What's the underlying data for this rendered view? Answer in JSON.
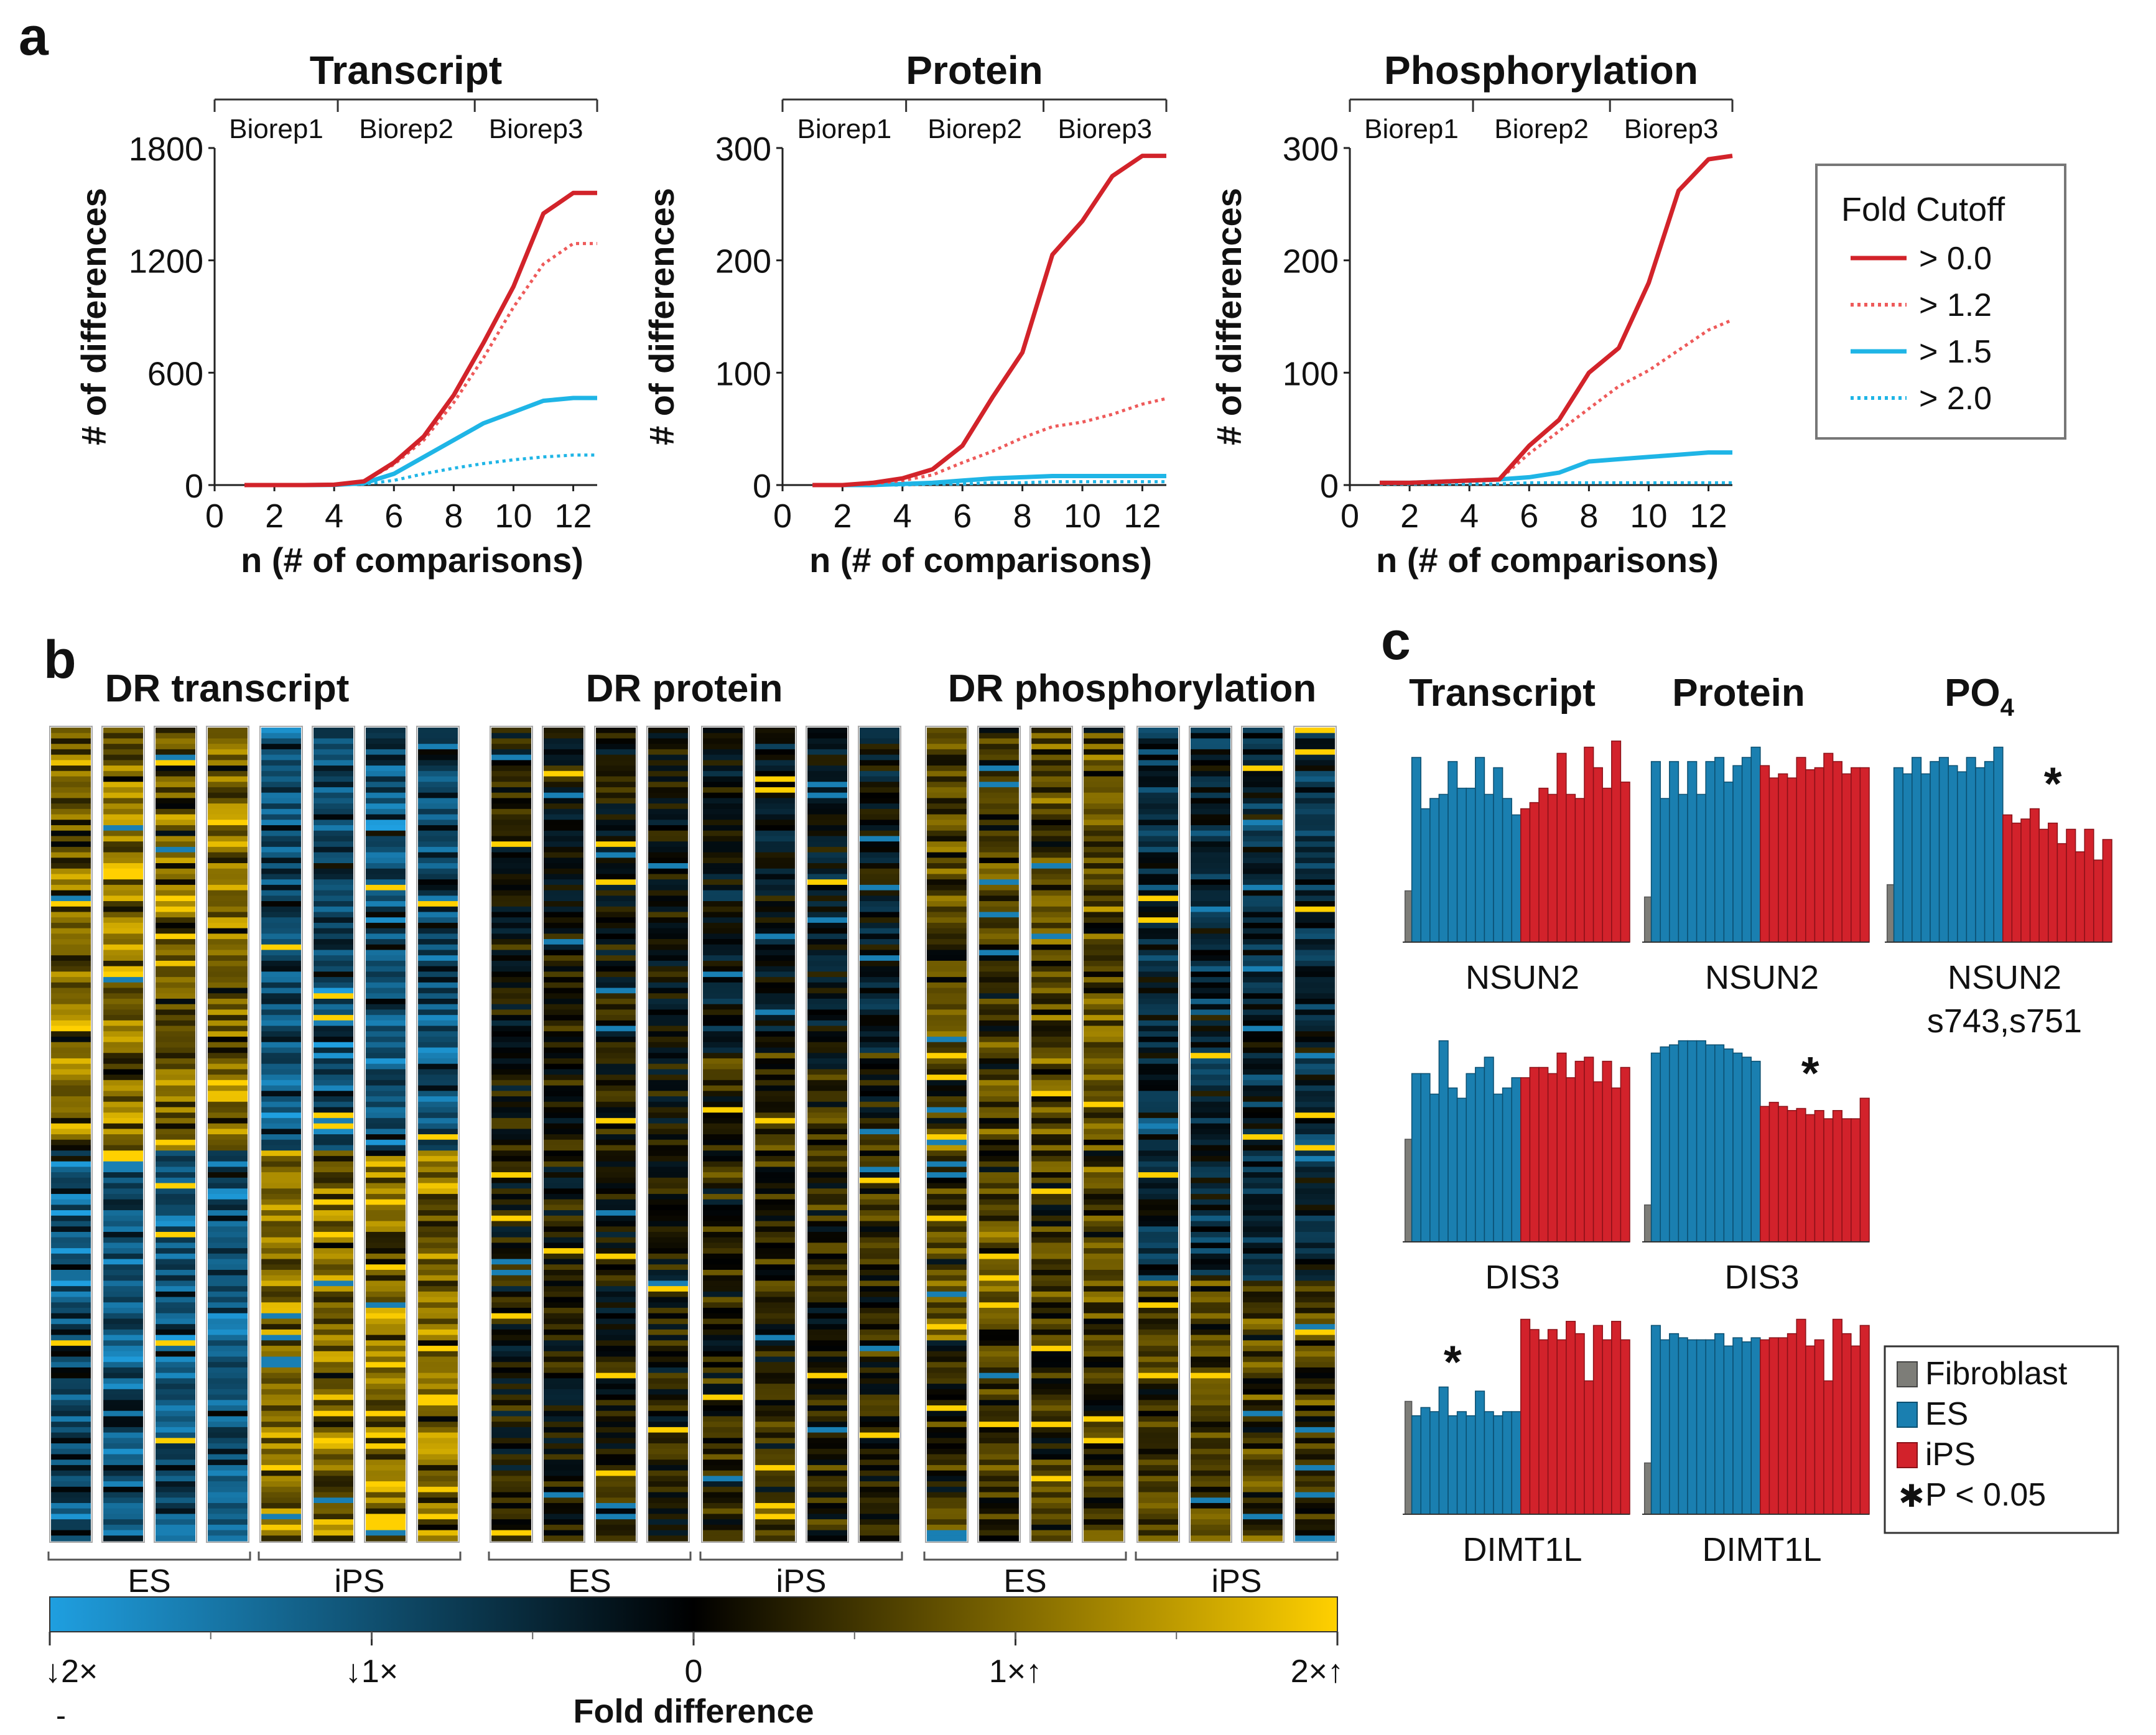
{
  "panel_labels": {
    "a": "a",
    "b": "b",
    "c": "c"
  },
  "colors": {
    "red": "#d2232a",
    "red_dotted": "#ee5a5a",
    "cyan": "#1fb5e6",
    "es_blue": "#1a7fb0",
    "ips_red": "#d2222b",
    "fibro_gray": "#7d7d78",
    "heat_blue": "#1f9fe0",
    "heat_yellow": "#ffd000"
  },
  "chart_data": [
    {
      "type": "line",
      "panel": "a",
      "title": "Transcript",
      "xlabel": "n (# of comparisons)",
      "ylabel": "# of differences",
      "xlim": [
        0,
        12.8
      ],
      "ylim": [
        0,
        1800
      ],
      "xticks": [
        "0",
        "2",
        "4",
        "6",
        "8",
        "10",
        "12"
      ],
      "yticks": [
        "0",
        "600",
        "1200",
        "1800"
      ],
      "ytick_values": [
        0,
        600,
        1200,
        1800
      ],
      "bioreps": [
        "Biorep1",
        "Biorep2",
        "Biorep3"
      ],
      "series": [
        {
          "name": "> 0.0",
          "style": "solid-red",
          "x": [
            1,
            2,
            3,
            4,
            5,
            6,
            7,
            8,
            9,
            10,
            11,
            12,
            13
          ],
          "values": [
            0,
            0,
            0,
            2,
            20,
            120,
            260,
            480,
            760,
            1060,
            1450,
            1560,
            1560
          ]
        },
        {
          "name": "> 1.2",
          "style": "dotted-red",
          "x": [
            1,
            2,
            3,
            4,
            5,
            6,
            7,
            8,
            9,
            10,
            11,
            12,
            13
          ],
          "values": [
            0,
            0,
            0,
            2,
            20,
            110,
            240,
            440,
            680,
            950,
            1180,
            1290,
            1290
          ]
        },
        {
          "name": "> 1.5",
          "style": "solid-cyan",
          "x": [
            1,
            2,
            3,
            4,
            5,
            6,
            7,
            8,
            9,
            10,
            11,
            12,
            13
          ],
          "values": [
            0,
            0,
            0,
            1,
            10,
            60,
            150,
            240,
            330,
            390,
            450,
            465,
            465
          ]
        },
        {
          "name": "> 2.0",
          "style": "dotted-cyan",
          "x": [
            1,
            2,
            3,
            4,
            5,
            6,
            7,
            8,
            9,
            10,
            11,
            12,
            13
          ],
          "values": [
            0,
            0,
            0,
            0,
            5,
            25,
            60,
            90,
            115,
            135,
            150,
            160,
            160
          ]
        }
      ]
    },
    {
      "type": "line",
      "panel": "a",
      "title": "Protein",
      "xlabel": "n (# of comparisons)",
      "ylabel": "# of differences",
      "xlim": [
        0,
        12.8
      ],
      "ylim": [
        0,
        300
      ],
      "xticks": [
        "0",
        "2",
        "4",
        "6",
        "8",
        "10",
        "12"
      ],
      "yticks": [
        "0",
        "100",
        "200",
        "300"
      ],
      "ytick_values": [
        0,
        100,
        200,
        300
      ],
      "bioreps": [
        "Biorep1",
        "Biorep2",
        "Biorep3"
      ],
      "series": [
        {
          "name": "> 0.0",
          "style": "solid-red",
          "x": [
            1,
            2,
            3,
            4,
            5,
            6,
            7,
            8,
            9,
            10,
            11,
            12,
            12.8
          ],
          "values": [
            0,
            0,
            2,
            6,
            14,
            35,
            78,
            118,
            205,
            235,
            275,
            293,
            293
          ]
        },
        {
          "name": "> 1.2",
          "style": "dotted-red",
          "x": [
            1,
            2,
            3,
            4,
            5,
            6,
            7,
            8,
            9,
            10,
            11,
            12,
            12.8
          ],
          "values": [
            0,
            0,
            1,
            4,
            9,
            20,
            30,
            42,
            52,
            56,
            63,
            72,
            77
          ]
        },
        {
          "name": "> 1.5",
          "style": "solid-cyan",
          "x": [
            1,
            2,
            3,
            4,
            5,
            6,
            7,
            8,
            9,
            10,
            11,
            12,
            12.8
          ],
          "values": [
            0,
            0,
            0,
            1,
            2,
            4,
            6,
            7,
            8,
            8,
            8,
            8,
            8
          ]
        },
        {
          "name": "> 2.0",
          "style": "dotted-cyan",
          "x": [
            1,
            2,
            3,
            4,
            5,
            6,
            7,
            8,
            9,
            10,
            11,
            12,
            12.8
          ],
          "values": [
            0,
            0,
            0,
            0,
            1,
            1,
            2,
            2,
            3,
            3,
            3,
            3,
            3
          ]
        }
      ]
    },
    {
      "type": "line",
      "panel": "a",
      "title": "Phosphorylation",
      "xlabel": "n (# of comparisons)",
      "ylabel": "# of differences",
      "xlim": [
        0,
        12.8
      ],
      "ylim": [
        0,
        300
      ],
      "xticks": [
        "0",
        "2",
        "4",
        "6",
        "8",
        "10",
        "12"
      ],
      "yticks": [
        "0",
        "100",
        "200",
        "300"
      ],
      "ytick_values": [
        0,
        100,
        200,
        300
      ],
      "bioreps": [
        "Biorep1",
        "Biorep2",
        "Biorep3"
      ],
      "series": [
        {
          "name": "> 0.0",
          "style": "solid-red",
          "x": [
            1,
            2,
            3,
            4,
            5,
            6,
            7,
            8,
            9,
            10,
            11,
            12,
            12.8
          ],
          "values": [
            2,
            2,
            3,
            4,
            5,
            35,
            58,
            100,
            122,
            180,
            262,
            290,
            293
          ]
        },
        {
          "name": "> 1.2",
          "style": "dotted-red",
          "x": [
            1,
            2,
            3,
            4,
            5,
            6,
            7,
            8,
            9,
            10,
            11,
            12,
            12.8
          ],
          "values": [
            2,
            2,
            3,
            4,
            5,
            28,
            48,
            68,
            88,
            102,
            120,
            138,
            147
          ]
        },
        {
          "name": "> 1.5",
          "style": "solid-cyan",
          "x": [
            1,
            2,
            3,
            4,
            5,
            6,
            7,
            8,
            9,
            10,
            11,
            12,
            12.8
          ],
          "values": [
            2,
            2,
            3,
            4,
            5,
            7,
            11,
            21,
            23,
            25,
            27,
            29,
            29
          ]
        },
        {
          "name": "> 2.0",
          "style": "dotted-cyan",
          "x": [
            1,
            2,
            3,
            4,
            5,
            6,
            7,
            8,
            9,
            10,
            11,
            12,
            12.8
          ],
          "values": [
            1,
            1,
            1,
            1,
            1,
            2,
            2,
            2,
            2,
            2,
            2,
            2,
            2
          ]
        }
      ]
    },
    {
      "type": "heatmap",
      "panel": "b",
      "groups": [
        {
          "title": "DR transcript",
          "conditions": [
            "ES",
            "iPS"
          ],
          "columns_per_condition": 4,
          "summary": "ES columns mostly yellow (upper) and blue (middle); iPS columns blue (upper) and yellow (lower)"
        },
        {
          "title": "DR protein",
          "conditions": [
            "ES",
            "iPS"
          ],
          "columns_per_condition": 4,
          "summary": "mostly dark with sparse yellow and blue rows"
        },
        {
          "title": "DR phosphorylation",
          "conditions": [
            "ES",
            "iPS"
          ],
          "columns_per_condition": 4,
          "summary": "ES mostly yellow, iPS mostly blue/dark with yellow lower section"
        }
      ],
      "colorbar": {
        "label": "Fold difference",
        "range": [
          -2,
          2
        ],
        "tick_labels": [
          "↓2×",
          "↓1×",
          "0",
          "1×↑",
          "2×↑"
        ],
        "tick_values": [
          -2,
          -1,
          0,
          1,
          2
        ],
        "low_color": "#1f9fe0",
        "mid_color": "#000000",
        "high_color": "#ffd000"
      },
      "dash": "-"
    },
    {
      "type": "bar",
      "panel": "c",
      "column_headers": [
        "Transcript",
        "Protein",
        "PO4"
      ],
      "column_header_base": "PO",
      "column_header_sub": "4",
      "categories": [
        "Fibroblast",
        "ES",
        "iPS"
      ],
      "subplots": [
        {
          "gene": "NSUN2",
          "sublabel": "",
          "column": "Transcript",
          "significant": false,
          "fibroblast": [
            0.25
          ],
          "es": [
            0.9,
            0.65,
            0.7,
            0.72,
            0.88,
            0.75,
            0.75,
            0.9,
            0.72,
            0.85,
            0.7,
            0.62
          ],
          "ips": [
            0.65,
            0.68,
            0.75,
            0.72,
            0.92,
            0.72,
            0.7,
            0.95,
            0.85,
            0.75,
            0.98,
            0.78
          ]
        },
        {
          "gene": "NSUN2",
          "sublabel": "",
          "column": "Protein",
          "significant": false,
          "fibroblast": [
            0.22
          ],
          "es": [
            0.88,
            0.7,
            0.88,
            0.72,
            0.88,
            0.72,
            0.88,
            0.9,
            0.78,
            0.86,
            0.9,
            0.95
          ],
          "ips": [
            0.86,
            0.8,
            0.82,
            0.8,
            0.9,
            0.84,
            0.85,
            0.92,
            0.88,
            0.82,
            0.85,
            0.85
          ]
        },
        {
          "gene": "NSUN2",
          "sublabel": "s743,s751",
          "column": "PO4",
          "significant": true,
          "fibroblast": [
            0.28
          ],
          "es": [
            0.85,
            0.82,
            0.9,
            0.82,
            0.88,
            0.9,
            0.86,
            0.83,
            0.9,
            0.85,
            0.88,
            0.95
          ],
          "ips": [
            0.62,
            0.58,
            0.6,
            0.65,
            0.55,
            0.58,
            0.48,
            0.55,
            0.44,
            0.55,
            0.4,
            0.5
          ]
        },
        {
          "gene": "DIS3",
          "sublabel": "",
          "column": "Transcript",
          "significant": false,
          "fibroblast": [
            0.5
          ],
          "es": [
            0.82,
            0.82,
            0.72,
            0.98,
            0.75,
            0.7,
            0.82,
            0.85,
            0.9,
            0.72,
            0.75,
            0.8
          ],
          "ips": [
            0.8,
            0.85,
            0.85,
            0.82,
            0.92,
            0.8,
            0.88,
            0.9,
            0.78,
            0.88,
            0.75,
            0.85
          ]
        },
        {
          "gene": "DIS3",
          "sublabel": "",
          "column": "Protein",
          "significant": true,
          "fibroblast": [
            0.18
          ],
          "es": [
            0.92,
            0.95,
            0.96,
            0.98,
            0.98,
            0.98,
            0.96,
            0.96,
            0.94,
            0.92,
            0.9,
            0.88
          ],
          "ips": [
            0.66,
            0.68,
            0.66,
            0.64,
            0.65,
            0.62,
            0.64,
            0.6,
            0.64,
            0.6,
            0.6,
            0.7
          ]
        },
        {
          "gene": "DIMT1L",
          "sublabel": "",
          "column": "Transcript",
          "significant": true,
          "fibroblast": [
            0.55
          ],
          "es": [
            0.48,
            0.52,
            0.5,
            0.62,
            0.48,
            0.5,
            0.48,
            0.6,
            0.5,
            0.48,
            0.5,
            0.5
          ],
          "ips": [
            0.95,
            0.9,
            0.85,
            0.9,
            0.85,
            0.94,
            0.88,
            0.65,
            0.92,
            0.85,
            0.94,
            0.85
          ]
        },
        {
          "gene": "DIMT1L",
          "sublabel": "",
          "column": "Protein",
          "significant": false,
          "fibroblast": [
            0.25
          ],
          "es": [
            0.92,
            0.85,
            0.88,
            0.86,
            0.85,
            0.85,
            0.85,
            0.88,
            0.82,
            0.86,
            0.84,
            0.86
          ],
          "ips": [
            0.85,
            0.86,
            0.86,
            0.88,
            0.95,
            0.82,
            0.85,
            0.65,
            0.95,
            0.88,
            0.82,
            0.92
          ]
        }
      ]
    }
  ],
  "legend_a": {
    "title": "Fold Cutoff",
    "items": [
      "> 0.0",
      "> 1.2",
      "> 1.5",
      "> 2.0"
    ]
  },
  "legend_c": {
    "items": [
      "Fibroblast",
      "ES",
      "iPS"
    ],
    "sig_symbol": "✱",
    "sig_label": "P < 0.05"
  },
  "sig_marker": "*"
}
